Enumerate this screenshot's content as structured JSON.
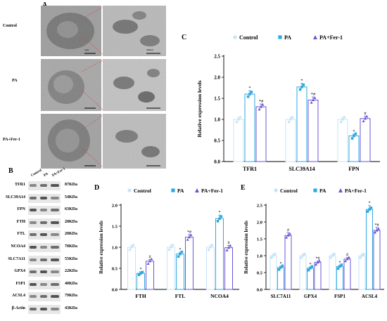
{
  "panels": {
    "a": "A",
    "b": "B",
    "c": "C",
    "d": "D",
    "e": "E"
  },
  "em": {
    "rows": [
      "Control",
      "PA",
      "PA+Fer-1"
    ],
    "scale_left": "5μm",
    "scale_right": "500nm"
  },
  "western": {
    "lanes": [
      "Control",
      "PA",
      "PA+Fer-1"
    ],
    "proteins": [
      {
        "name": "TFR1",
        "kda": "87KDa"
      },
      {
        "name": "SLC39A14",
        "kda": "54KDa"
      },
      {
        "name": "FPN",
        "kda": "63KDa"
      },
      {
        "name": "FTH",
        "kda": "20KDa"
      },
      {
        "name": "FTL",
        "kda": "20KDa"
      },
      {
        "name": "NCOA4",
        "kda": "70KDa"
      },
      {
        "name": "SLC7A11",
        "kda": "55KDa"
      },
      {
        "name": "GPX4",
        "kda": "22KDa"
      },
      {
        "name": "FSP1",
        "kda": "40KDa"
      },
      {
        "name": "ACSL4",
        "kda": "79KDa"
      },
      {
        "name": "β-Actin",
        "kda": "43KDa"
      }
    ]
  },
  "colors": {
    "control": "#c7e3f5",
    "pa": "#2ea8e0",
    "fer1": "#6b55d6"
  },
  "chart_data": [
    {
      "panel": "C",
      "type": "bar",
      "ylabel": "Relative expression levels",
      "ylim": [
        0,
        2.5
      ],
      "yticks": [
        "0.0",
        "0.5",
        "1.0",
        "1.5",
        "2.0",
        "2.5"
      ],
      "categories": [
        "TFR1",
        "SLC39A14",
        "FPN"
      ],
      "series": [
        {
          "name": "Control",
          "values": [
            1.0,
            1.0,
            1.0
          ]
        },
        {
          "name": "PA",
          "values": [
            1.6,
            1.77,
            0.61
          ]
        },
        {
          "name": "PA+Fer-1",
          "values": [
            1.3,
            1.46,
            1.02
          ]
        }
      ],
      "annotations": [
        [
          "",
          "*",
          "*#"
        ],
        [
          "",
          "*",
          "*#"
        ],
        [
          "",
          "*",
          "#"
        ]
      ]
    },
    {
      "panel": "D",
      "type": "bar",
      "ylabel": "Relative expression levels",
      "ylim": [
        0,
        2.0
      ],
      "yticks": [
        "0.0",
        "0.5",
        "1.0",
        "1.5",
        "2.0"
      ],
      "categories": [
        "FTH",
        "FTL",
        "NCOA4"
      ],
      "series": [
        {
          "name": "Control",
          "values": [
            1.0,
            1.0,
            1.0
          ]
        },
        {
          "name": "PA",
          "values": [
            0.38,
            0.84,
            1.68
          ]
        },
        {
          "name": "PA+Fer-1",
          "values": [
            0.67,
            1.24,
            0.99
          ]
        }
      ],
      "annotations": [
        [
          "",
          "*",
          "#"
        ],
        [
          "",
          "*",
          "*#"
        ],
        [
          "",
          "*",
          "#"
        ]
      ]
    },
    {
      "panel": "E",
      "type": "bar",
      "ylabel": "Relative expression levels",
      "ylim": [
        0,
        2.5
      ],
      "yticks": [
        "0.0",
        "0.5",
        "1.0",
        "1.5",
        "2.0",
        "2.5"
      ],
      "categories": [
        "SLC7A11",
        "GPX4",
        "FSP1",
        "ACSL4"
      ],
      "series": [
        {
          "name": "Control",
          "values": [
            1.0,
            1.0,
            1.0,
            1.0
          ]
        },
        {
          "name": "PA",
          "values": [
            0.65,
            0.63,
            0.68,
            2.37
          ]
        },
        {
          "name": "PA+Fer-1",
          "values": [
            1.6,
            0.8,
            0.9,
            1.75
          ]
        }
      ],
      "annotations": [
        [
          "",
          "*",
          "#"
        ],
        [
          "",
          "*",
          "*#"
        ],
        [
          "",
          "*",
          "#"
        ],
        [
          "",
          "*",
          "*#"
        ]
      ]
    }
  ]
}
